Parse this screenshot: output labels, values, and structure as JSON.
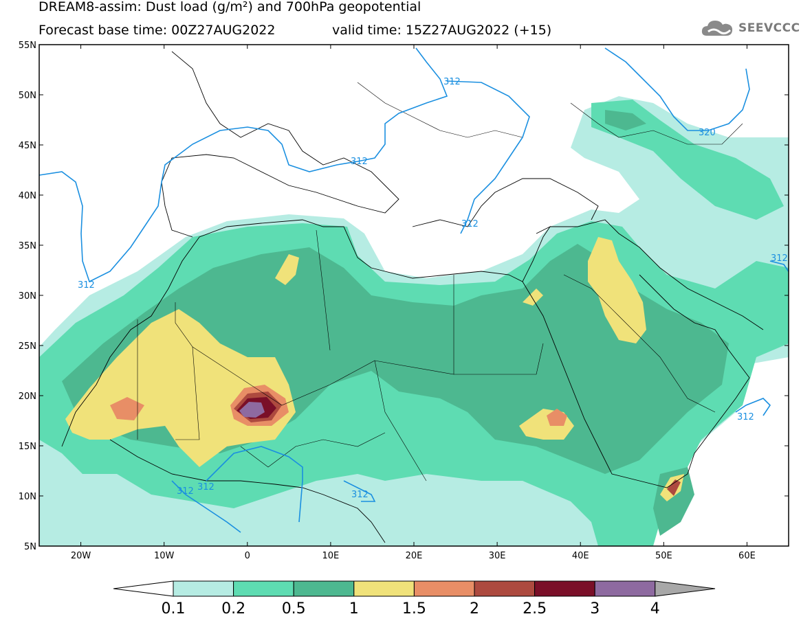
{
  "header": {
    "title_line1": "DREAM8-assim: Dust load (g/m²) and 700hPa geopotential",
    "title_line2_left": "Forecast base time: 00Z27AUG2022",
    "title_line2_right": "valid time: 15Z27AUG2022 (+15)",
    "logo_text": "SEEVCCC",
    "logo_icon": "cloud-logo-icon"
  },
  "map": {
    "lon_range": [
      -25,
      65
    ],
    "lat_range": [
      5,
      55
    ],
    "lat_ticks": [
      "55N",
      "50N",
      "45N",
      "40N",
      "35N",
      "30N",
      "25N",
      "20N",
      "15N",
      "10N",
      "5N"
    ],
    "lon_ticks": [
      "20W",
      "10W",
      "0",
      "10E",
      "20E",
      "30E",
      "40E",
      "50E",
      "60E"
    ],
    "contour_labels": [
      "312",
      "312",
      "312",
      "312",
      "312",
      "312",
      "312",
      "312",
      "312",
      "320"
    ],
    "contour_color": "#1a8fe0"
  },
  "colorbar": {
    "labels": [
      "0.1",
      "0.2",
      "0.5",
      "1",
      "1.5",
      "2",
      "2.5",
      "3",
      "4"
    ],
    "colors": [
      "#b6ece3",
      "#5edcb2",
      "#4db890",
      "#f0e27a",
      "#e88e66",
      "#ad4a3f",
      "#7a0f28",
      "#8e6aa0"
    ],
    "low_end_color": "#ffffff",
    "high_end_color": "#a8a8a8"
  }
}
